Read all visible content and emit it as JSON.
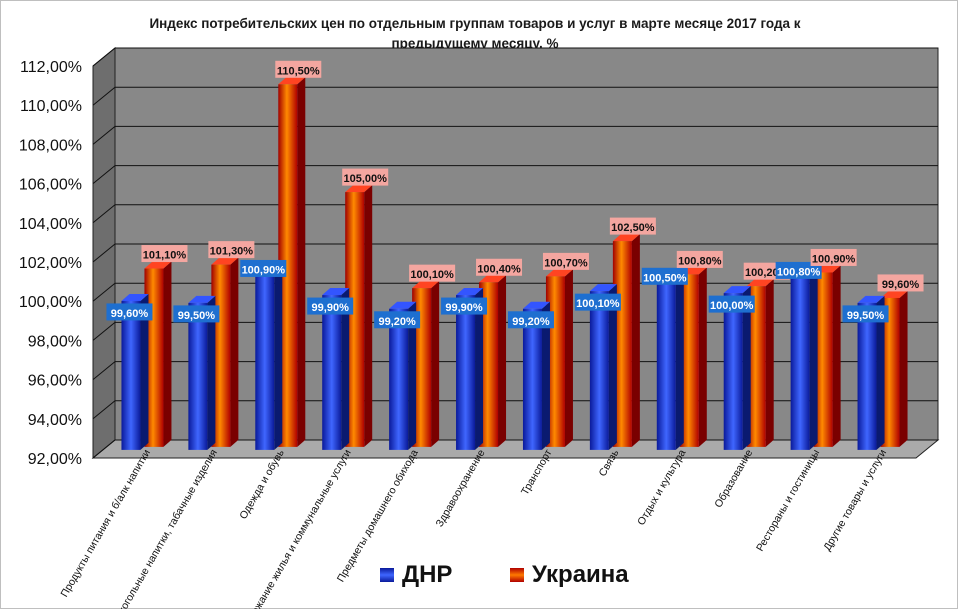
{
  "chart_data": {
    "type": "bar",
    "title": "Индекс потребительских цен по отдельным группам товаров и услуг в марте месяце 2017 года к предыдущему месяцу, %",
    "categories": [
      "Продукты питания и б/алк напитки",
      "Алкогольные напитки, табачные изделия",
      "Одежда и обувь",
      "Содержание жилья и коммунальные услуги",
      "Предметы домашнего обихода",
      "Здравоохранение",
      "Транспорт",
      "Связь",
      "Отдых и культура",
      "Образование",
      "Рестораны и гостиницы",
      "Другие товары и услуги"
    ],
    "series": [
      {
        "name": "ДНР",
        "values": [
          99.6,
          99.5,
          100.9,
          99.9,
          99.2,
          99.9,
          99.2,
          100.1,
          100.5,
          100.0,
          100.8,
          99.5
        ],
        "labels": [
          "99,60%",
          "99,50%",
          "100,90%",
          "99,90%",
          "99,20%",
          "99,90%",
          "99,20%",
          "100,10%",
          "100,50%",
          "100,00%",
          "100,80%",
          "99,50%"
        ],
        "color": "#1e3cff"
      },
      {
        "name": "Украина",
        "values": [
          101.1,
          101.3,
          110.5,
          105.0,
          100.1,
          100.4,
          100.7,
          102.5,
          100.8,
          100.2,
          100.9,
          99.6
        ],
        "labels": [
          "101,10%",
          "101,30%",
          "110,50%",
          "105,00%",
          "100,10%",
          "100,40%",
          "100,70%",
          "102,50%",
          "100,80%",
          "100,20%",
          "100,90%",
          "99,60%"
        ],
        "color": "#ff2a00"
      }
    ],
    "y_ticks": [
      "92,00%",
      "94,00%",
      "96,00%",
      "98,00%",
      "100,00%",
      "102,00%",
      "104,00%",
      "106,00%",
      "108,00%",
      "110,00%",
      "112,00%"
    ],
    "ylim": [
      92,
      112
    ],
    "grid": true,
    "legend_position": "bottom",
    "colors": {
      "wall": "#888888",
      "floor": "#aaaaaa",
      "label_dnr": "#1e6fd0",
      "label_ukr": "#f4a6a0"
    }
  }
}
